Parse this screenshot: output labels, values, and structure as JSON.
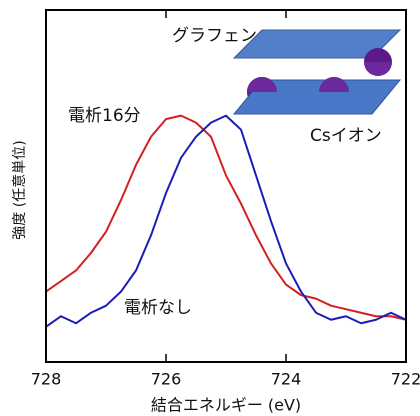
{
  "chart_data": {
    "type": "line",
    "xlabel": "結合エネルギー (eV)",
    "ylabel": "強度 (任意単位)",
    "annotations": [
      "グラフェン",
      "電析16分",
      "Csイオン",
      "電析なし"
    ],
    "x": [
      728,
      727.75,
      727.5,
      727.25,
      727,
      726.75,
      726.5,
      726.25,
      726,
      725.75,
      725.5,
      725.25,
      725,
      724.75,
      724.5,
      724.25,
      724,
      723.75,
      723.5,
      723.25,
      723,
      722.75,
      722.5,
      722.25,
      722
    ],
    "series": [
      {
        "name": "電析16分",
        "color": "#d42020",
        "values": [
          20,
          23,
          26,
          31,
          37,
          46,
          56,
          64,
          69,
          70,
          68,
          64,
          53,
          45,
          36,
          28,
          22,
          19,
          18,
          16,
          15,
          14,
          13,
          13,
          12
        ]
      },
      {
        "name": "電析なし",
        "color": "#1c1cb8",
        "values": [
          10,
          13,
          11,
          14,
          16,
          20,
          26,
          36,
          48,
          58,
          64,
          68,
          70,
          66,
          53,
          40,
          28,
          20,
          14,
          12,
          13,
          11,
          12,
          14,
          12
        ]
      }
    ],
    "xlim": [
      728,
      722
    ],
    "xticks": [
      728,
      726,
      724,
      722
    ],
    "ylim": [
      0,
      100
    ]
  }
}
